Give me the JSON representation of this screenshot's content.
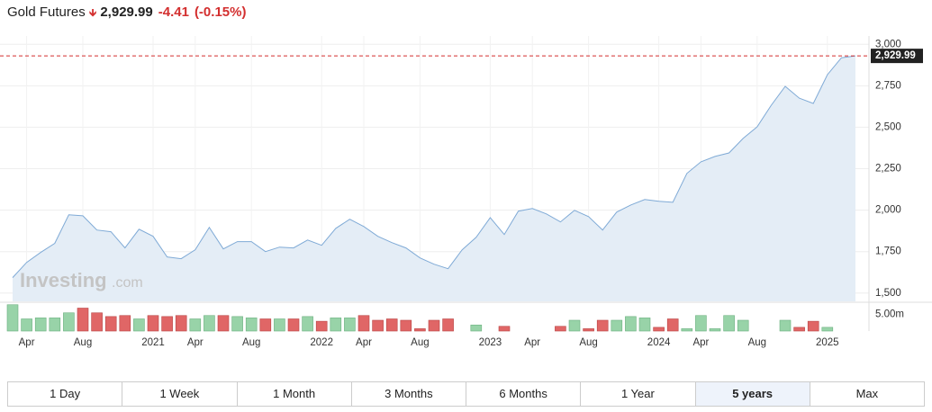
{
  "header": {
    "name": "Gold Futures",
    "price": "2,929.99",
    "change": "-4.41",
    "change_pct": "(-0.15%)"
  },
  "watermark": {
    "brand": "Investing",
    "suffix": ".com"
  },
  "chart_data": [
    {
      "type": "area",
      "color": "#7faad6",
      "fill": "#e4edf6",
      "grid": true,
      "categories": [
        null,
        "Apr",
        null,
        null,
        null,
        "Aug",
        null,
        null,
        null,
        null,
        "2021",
        null,
        null,
        "Apr",
        null,
        null,
        null,
        "Aug",
        null,
        null,
        null,
        null,
        "2022",
        null,
        null,
        "Apr",
        null,
        null,
        null,
        "Aug",
        null,
        null,
        null,
        null,
        "2023",
        null,
        null,
        "Apr",
        null,
        null,
        null,
        "Aug",
        null,
        null,
        null,
        null,
        "2024",
        null,
        null,
        "Apr",
        null,
        null,
        null,
        "Aug",
        null,
        null,
        null,
        null,
        "2025",
        null,
        null
      ],
      "values": [
        1593,
        1685,
        1745,
        1800,
        1972,
        1966,
        1880,
        1870,
        1772,
        1885,
        1842,
        1718,
        1707,
        1761,
        1896,
        1766,
        1810,
        1810,
        1750,
        1777,
        1772,
        1820,
        1788,
        1890,
        1945,
        1901,
        1842,
        1804,
        1772,
        1712,
        1674,
        1647,
        1761,
        1836,
        1955,
        1853,
        1994,
        2010,
        1977,
        1929,
        1999,
        1961,
        1880,
        1988,
        2031,
        2064,
        2053,
        2047,
        2221,
        2291,
        2324,
        2345,
        2432,
        2502,
        2632,
        2746,
        2675,
        2643,
        2816,
        2919,
        2929.99
      ],
      "last_label": "2,929.99",
      "last_color": "#d32f2f",
      "ylim": [
        1450,
        3050
      ],
      "yticks": [
        {
          "value": 1500,
          "label": "1,500"
        },
        {
          "value": 1750,
          "label": "1,750"
        },
        {
          "value": 2000,
          "label": "2,000"
        },
        {
          "value": 2250,
          "label": "2,250"
        },
        {
          "value": 2500,
          "label": "2,500"
        },
        {
          "value": 2750,
          "label": "2,750"
        },
        {
          "value": 3000,
          "label": "3,000"
        }
      ]
    },
    {
      "type": "bar",
      "up_color": "#98d3a8",
      "down_color": "#e06666",
      "values": [
        7800000,
        3600000,
        3900000,
        3900000,
        5400000,
        6800000,
        5400000,
        4300000,
        4600000,
        3600000,
        4600000,
        4300000,
        4600000,
        3600000,
        4600000,
        4600000,
        4300000,
        3900000,
        3600000,
        3600000,
        3600000,
        4300000,
        2900000,
        3900000,
        3900000,
        4600000,
        3200000,
        3600000,
        3200000,
        700000,
        3200000,
        3600000,
        null,
        1800000,
        null,
        1400000,
        null,
        null,
        null,
        1400000,
        3200000,
        700000,
        3200000,
        3200000,
        4300000,
        3900000,
        1100000,
        3600000,
        700000,
        4600000,
        700000,
        4600000,
        3200000,
        null,
        null,
        3200000,
        1100000,
        2900000,
        1100000,
        null,
        null
      ],
      "ylim": [
        0,
        8000000
      ],
      "yticks": [
        {
          "value": 5000000,
          "label": "5.00m"
        }
      ]
    }
  ],
  "buttons": [
    "1 Day",
    "1 Week",
    "1 Month",
    "3 Months",
    "6 Months",
    "1 Year",
    "5 years",
    "Max"
  ],
  "active_button": 6
}
